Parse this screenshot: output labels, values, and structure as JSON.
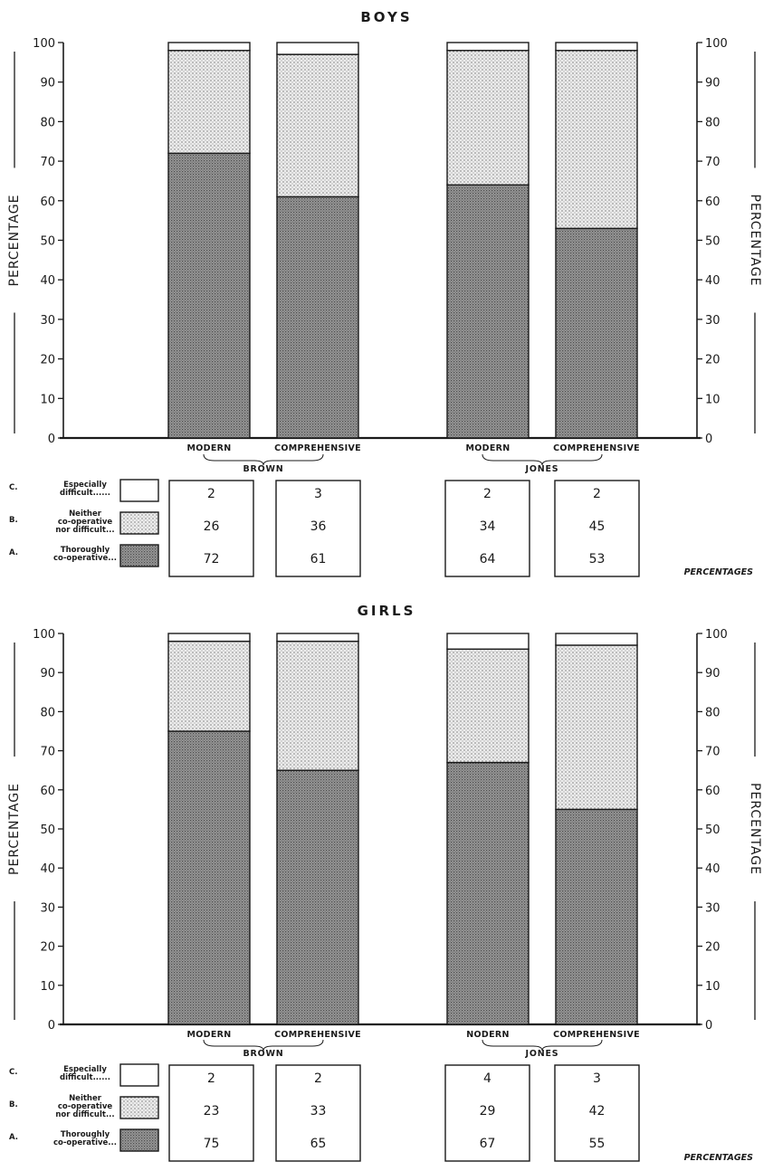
{
  "chart_data": [
    {
      "type": "bar",
      "stacked": true,
      "title": "BOYS",
      "ylabel": "PERCENTAGE",
      "ylim": [
        0,
        100
      ],
      "yticks": [
        0,
        10,
        20,
        30,
        40,
        50,
        60,
        70,
        80,
        90,
        100
      ],
      "groups": [
        "BROWN",
        "JONES"
      ],
      "categories": [
        "MODERN",
        "COMPREHENSIVE",
        "MODERN",
        "COMPREHENSIVE"
      ],
      "series": [
        {
          "key": "A",
          "name": "Thoroughly co-operative",
          "values": [
            72,
            61,
            64,
            53
          ]
        },
        {
          "key": "B",
          "name": "Neither co-operative nor difficult",
          "values": [
            26,
            36,
            34,
            45
          ]
        },
        {
          "key": "C",
          "name": "Especially difficult",
          "values": [
            2,
            3,
            2,
            2
          ]
        }
      ],
      "table_label": "PERCENTAGES"
    },
    {
      "type": "bar",
      "stacked": true,
      "title": "GIRLS",
      "ylabel": "PERCENTAGE",
      "ylim": [
        0,
        100
      ],
      "yticks": [
        0,
        10,
        20,
        30,
        40,
        50,
        60,
        70,
        80,
        90,
        100
      ],
      "groups": [
        "BROWN",
        "JONES"
      ],
      "categories": [
        "MODERN",
        "COMPREHENSIVE",
        "NODERN",
        "COMPREHENSIVE"
      ],
      "series": [
        {
          "key": "A",
          "name": "Thoroughly co-operative",
          "values": [
            75,
            65,
            67,
            55
          ]
        },
        {
          "key": "B",
          "name": "Neither co-operative nor difficult",
          "values": [
            23,
            33,
            29,
            42
          ]
        },
        {
          "key": "C",
          "name": "Especially difficult",
          "values": [
            2,
            2,
            4,
            3
          ]
        }
      ],
      "table_label": "PERCENTAGES"
    }
  ],
  "legend": [
    {
      "letter": "C.",
      "lines": [
        "Especially",
        "difficult......"
      ]
    },
    {
      "letter": "B.",
      "lines": [
        "Neither",
        "co-operative",
        "nor difficult..."
      ]
    },
    {
      "letter": "A.",
      "lines": [
        "Thoroughly",
        "co-operative..."
      ]
    }
  ]
}
